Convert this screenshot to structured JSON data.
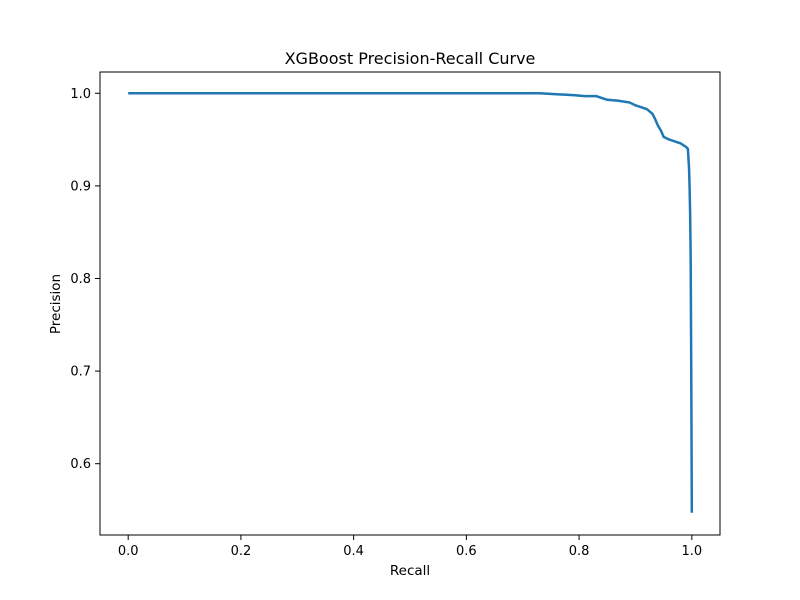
{
  "chart_data": {
    "type": "line",
    "title": "XGBoost Precision-Recall Curve",
    "xlabel": "Recall",
    "ylabel": "Precision",
    "xlim": [
      -0.05,
      1.05
    ],
    "ylim": [
      0.523,
      1.023
    ],
    "xticks": [
      0.0,
      0.2,
      0.4,
      0.6,
      0.8,
      1.0
    ],
    "xtick_labels": [
      "0.0",
      "0.2",
      "0.4",
      "0.6",
      "0.8",
      "1.0"
    ],
    "yticks": [
      0.6,
      0.7,
      0.8,
      0.9,
      1.0
    ],
    "ytick_labels": [
      "0.6",
      "0.7",
      "0.8",
      "0.9",
      "1.0"
    ],
    "grid": false,
    "legend": "none",
    "line_color": "#1f77b4",
    "series": [
      {
        "x": [
          0.0,
          0.2,
          0.4,
          0.6,
          0.7,
          0.73,
          0.76,
          0.79,
          0.81,
          0.83,
          0.85,
          0.87,
          0.89,
          0.9,
          0.91,
          0.92,
          0.93,
          0.935,
          0.94,
          0.945,
          0.95,
          0.96,
          0.97,
          0.975,
          0.98,
          0.985,
          0.99,
          0.993,
          0.995,
          0.996,
          0.997,
          0.998,
          0.999,
          1.0
        ],
        "y": [
          1.0,
          1.0,
          1.0,
          1.0,
          1.0,
          1.0,
          0.999,
          0.998,
          0.997,
          0.997,
          0.993,
          0.992,
          0.99,
          0.987,
          0.985,
          0.983,
          0.978,
          0.972,
          0.965,
          0.96,
          0.953,
          0.95,
          0.948,
          0.947,
          0.946,
          0.944,
          0.942,
          0.94,
          0.92,
          0.9,
          0.87,
          0.82,
          0.7,
          0.547
        ]
      }
    ]
  }
}
